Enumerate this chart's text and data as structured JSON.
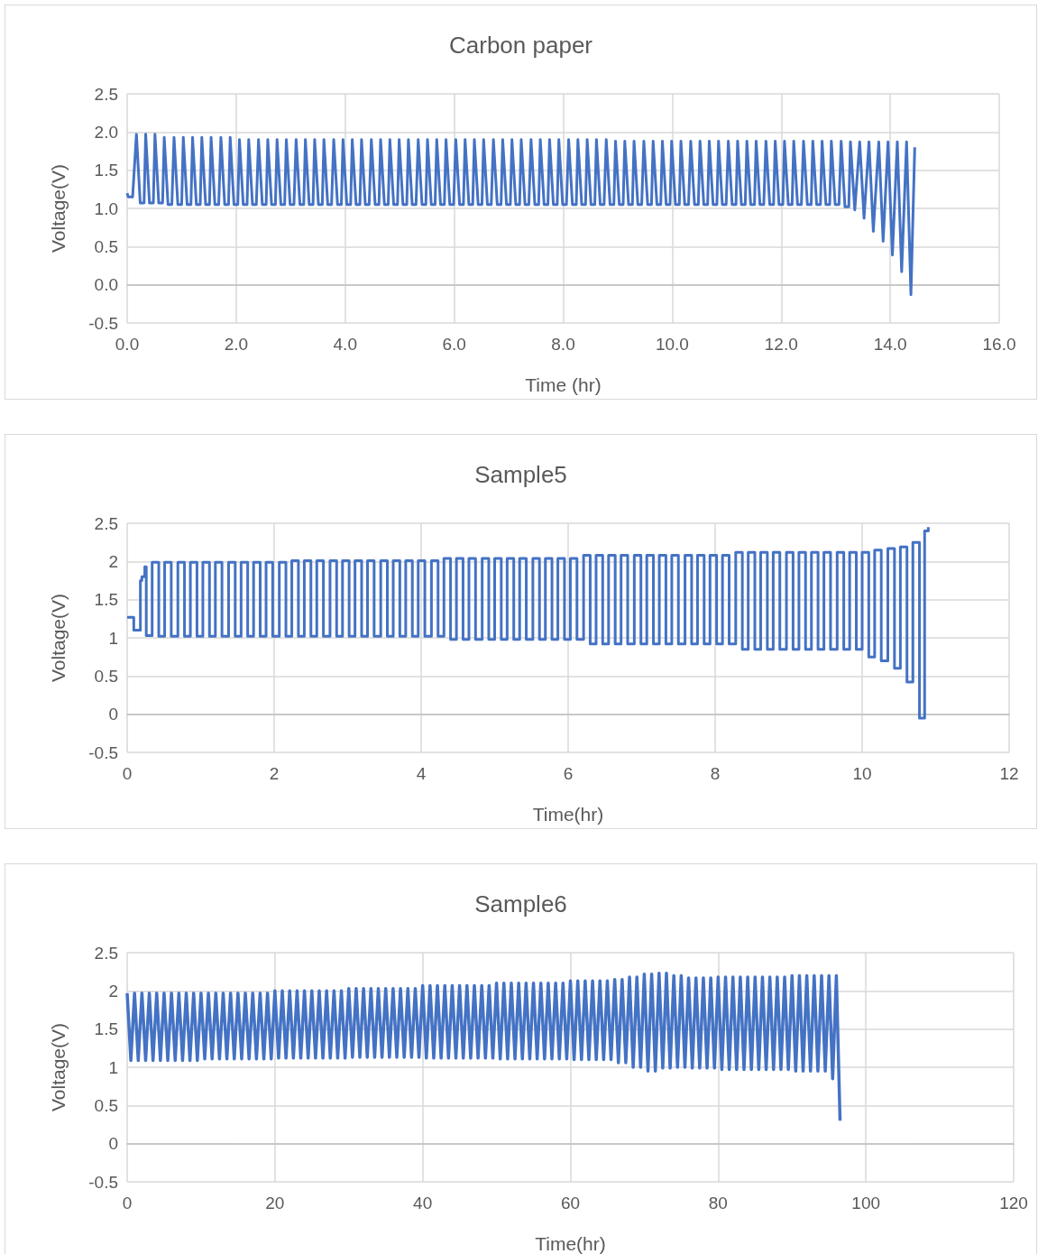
{
  "chart_data": [
    {
      "type": "line",
      "title": "Carbon paper",
      "xlabel": "Time (hr)",
      "ylabel": "Voltage(V)",
      "color": "#4472c4",
      "grid": true,
      "xlim": [
        0,
        16
      ],
      "xticks": [
        {
          "value": 0,
          "label": "0.0"
        },
        {
          "value": 2,
          "label": "2.0"
        },
        {
          "value": 4,
          "label": "4.0"
        },
        {
          "value": 6,
          "label": "6.0"
        },
        {
          "value": 8,
          "label": "8.0"
        },
        {
          "value": 10,
          "label": "10.0"
        },
        {
          "value": 12,
          "label": "12.0"
        },
        {
          "value": 14,
          "label": "14.0"
        },
        {
          "value": 16,
          "label": "16.0"
        }
      ],
      "ylim": [
        -0.5,
        2.5
      ],
      "yticks": [
        -0.5,
        {
          "value": 0,
          "label": "0.0"
        },
        0.5,
        {
          "value": 1,
          "label": "1.0"
        },
        1.5,
        {
          "value": 2,
          "label": "2.0"
        },
        2.5
      ],
      "x": [
        0,
        0.02,
        0.1,
        0.17,
        0.24,
        0.31,
        0.34,
        0.41,
        0.48,
        0.51,
        0.58,
        0.65,
        0.68,
        0.75,
        0.82,
        0.86,
        0.93,
        1.0,
        1.03,
        1.1,
        1.17,
        1.2,
        1.27,
        1.34,
        1.37,
        1.44,
        1.51,
        1.54,
        1.61,
        1.68,
        1.72,
        1.79,
        1.86,
        1.89,
        1.96,
        2.03,
        2.06,
        2.13,
        2.2,
        2.23,
        2.3,
        2.37,
        2.41,
        2.48,
        2.55,
        2.58,
        2.65,
        2.72,
        2.75,
        2.82,
        2.89,
        2.92,
        2.99,
        3.06,
        3.1,
        3.17,
        3.24,
        3.27,
        3.34,
        3.41,
        3.44,
        3.51,
        3.58,
        3.61,
        3.68,
        3.75,
        3.79,
        3.86,
        3.93,
        3.96,
        4.03,
        4.1,
        4.13,
        4.2,
        4.27,
        4.3,
        4.37,
        4.44,
        4.48,
        4.55,
        4.62,
        4.65,
        4.72,
        4.79,
        4.82,
        4.89,
        4.96,
        4.99,
        5.06,
        5.13,
        5.16,
        5.23,
        5.3,
        5.34,
        5.41,
        5.48,
        5.51,
        5.58,
        5.65,
        5.68,
        5.75,
        5.82,
        5.85,
        5.92,
        5.99,
        6.03,
        6.1,
        6.17,
        6.2,
        6.27,
        6.34,
        6.37,
        6.44,
        6.51,
        6.54,
        6.61,
        6.68,
        6.72,
        6.79,
        6.86,
        6.89,
        6.96,
        7.03,
        7.06,
        7.13,
        7.2,
        7.23,
        7.3,
        7.37,
        7.41,
        7.48,
        7.55,
        7.58,
        7.65,
        7.72,
        7.75,
        7.82,
        7.89,
        7.92,
        7.99,
        8.06,
        8.1,
        8.17,
        8.24,
        8.27,
        8.34,
        8.41,
        8.44,
        8.51,
        8.58,
        8.61,
        8.68,
        8.75,
        8.79,
        8.86,
        8.93,
        8.96,
        9.03,
        9.1,
        9.13,
        9.2,
        9.27,
        9.3,
        9.37,
        9.44,
        9.48,
        9.55,
        9.62,
        9.65,
        9.72,
        9.79,
        9.82,
        9.89,
        9.96,
        9.99,
        10.06,
        10.13,
        10.16,
        10.23,
        10.3,
        10.34,
        10.41,
        10.48,
        10.51,
        10.58,
        10.65,
        10.68,
        10.75,
        10.82,
        10.85,
        10.92,
        10.99,
        11.03,
        11.1,
        11.17,
        11.2,
        11.27,
        11.34,
        11.37,
        11.44,
        11.51,
        11.54,
        11.61,
        11.68,
        11.72,
        11.79,
        11.86,
        11.89,
        11.96,
        12.03,
        12.06,
        12.13,
        12.2,
        12.23,
        12.3,
        12.37,
        12.41,
        12.48,
        12.55,
        12.58,
        12.65,
        12.72,
        12.75,
        12.82,
        12.89,
        12.92,
        12.99,
        13.06,
        13.1,
        13.17,
        13.24,
        13.27,
        13.35,
        13.44,
        13.52,
        13.61,
        13.69,
        13.79,
        13.87,
        13.96,
        14.04,
        14.13,
        14.21,
        14.3,
        14.38,
        14.45
      ],
      "values": [
        1.2,
        1.15,
        1.15,
        1.97,
        1.07,
        1.07,
        1.97,
        1.07,
        1.07,
        1.97,
        1.07,
        1.07,
        1.93,
        1.05,
        1.05,
        1.93,
        1.05,
        1.05,
        1.93,
        1.05,
        1.05,
        1.93,
        1.05,
        1.05,
        1.93,
        1.05,
        1.05,
        1.93,
        1.05,
        1.05,
        1.93,
        1.05,
        1.05,
        1.93,
        1.05,
        1.05,
        1.9,
        1.05,
        1.05,
        1.9,
        1.05,
        1.05,
        1.9,
        1.05,
        1.05,
        1.9,
        1.05,
        1.05,
        1.9,
        1.05,
        1.05,
        1.9,
        1.05,
        1.05,
        1.9,
        1.05,
        1.05,
        1.9,
        1.05,
        1.05,
        1.9,
        1.05,
        1.05,
        1.9,
        1.05,
        1.05,
        1.9,
        1.05,
        1.05,
        1.9,
        1.05,
        1.05,
        1.9,
        1.05,
        1.05,
        1.9,
        1.05,
        1.05,
        1.9,
        1.05,
        1.05,
        1.9,
        1.05,
        1.05,
        1.9,
        1.05,
        1.05,
        1.9,
        1.05,
        1.05,
        1.9,
        1.05,
        1.05,
        1.9,
        1.05,
        1.05,
        1.9,
        1.05,
        1.05,
        1.9,
        1.05,
        1.05,
        1.9,
        1.05,
        1.05,
        1.9,
        1.05,
        1.05,
        1.9,
        1.05,
        1.05,
        1.9,
        1.05,
        1.05,
        1.9,
        1.05,
        1.05,
        1.9,
        1.05,
        1.05,
        1.9,
        1.05,
        1.05,
        1.9,
        1.05,
        1.05,
        1.9,
        1.05,
        1.05,
        1.9,
        1.05,
        1.05,
        1.9,
        1.05,
        1.05,
        1.9,
        1.05,
        1.05,
        1.9,
        1.05,
        1.05,
        1.9,
        1.05,
        1.05,
        1.9,
        1.05,
        1.05,
        1.9,
        1.05,
        1.05,
        1.9,
        1.05,
        1.05,
        1.9,
        1.05,
        1.05,
        1.88,
        1.05,
        1.05,
        1.88,
        1.05,
        1.05,
        1.88,
        1.05,
        1.05,
        1.88,
        1.05,
        1.05,
        1.88,
        1.05,
        1.05,
        1.88,
        1.05,
        1.05,
        1.88,
        1.05,
        1.05,
        1.88,
        1.05,
        1.05,
        1.88,
        1.05,
        1.05,
        1.88,
        1.05,
        1.05,
        1.88,
        1.05,
        1.05,
        1.88,
        1.05,
        1.05,
        1.88,
        1.05,
        1.05,
        1.88,
        1.05,
        1.05,
        1.88,
        1.05,
        1.05,
        1.88,
        1.05,
        1.05,
        1.88,
        1.05,
        1.05,
        1.88,
        1.05,
        1.05,
        1.88,
        1.05,
        1.05,
        1.88,
        1.05,
        1.05,
        1.88,
        1.05,
        1.05,
        1.88,
        1.05,
        1.05,
        1.88,
        1.05,
        1.05,
        1.88,
        1.05,
        1.05,
        1.88,
        1.02,
        1.02,
        1.87,
        0.98,
        1.87,
        0.87,
        1.87,
        0.7,
        1.87,
        0.57,
        1.87,
        0.39,
        1.87,
        0.17,
        1.87,
        -0.13,
        1.8
      ]
    },
    {
      "type": "step",
      "title": "Sample5",
      "xlabel": "Time(hr)",
      "ylabel": "Voltage(V)",
      "color": "#4472c4",
      "grid": true,
      "xlim": [
        0,
        12
      ],
      "xticks": [
        0,
        2,
        4,
        6,
        8,
        10,
        12
      ],
      "ylim": [
        -0.5,
        2.5
      ],
      "yticks": [
        -0.5,
        0,
        0.5,
        1,
        1.5,
        2,
        2.5
      ],
      "x": [
        0,
        0.09,
        0.18,
        0.2,
        0.24,
        0.26,
        0.34,
        0.43,
        0.51,
        0.6,
        0.69,
        0.78,
        0.86,
        0.95,
        1.03,
        1.12,
        1.2,
        1.29,
        1.38,
        1.47,
        1.55,
        1.64,
        1.72,
        1.81,
        1.89,
        1.98,
        2.07,
        2.16,
        2.24,
        2.33,
        2.41,
        2.5,
        2.58,
        2.67,
        2.76,
        2.85,
        2.93,
        3.02,
        3.1,
        3.19,
        3.27,
        3.36,
        3.45,
        3.54,
        3.62,
        3.71,
        3.79,
        3.88,
        3.96,
        4.05,
        4.14,
        4.23,
        4.31,
        4.4,
        4.48,
        4.57,
        4.65,
        4.74,
        4.83,
        4.92,
        5.0,
        5.09,
        5.17,
        5.26,
        5.34,
        5.43,
        5.52,
        5.61,
        5.69,
        5.78,
        5.86,
        5.95,
        6.03,
        6.12,
        6.21,
        6.3,
        6.38,
        6.47,
        6.55,
        6.64,
        6.72,
        6.81,
        6.9,
        6.99,
        7.07,
        7.16,
        7.24,
        7.33,
        7.41,
        7.5,
        7.59,
        7.68,
        7.76,
        7.85,
        7.93,
        8.02,
        8.1,
        8.19,
        8.28,
        8.37,
        8.45,
        8.54,
        8.62,
        8.71,
        8.79,
        8.88,
        8.97,
        9.06,
        9.14,
        9.23,
        9.31,
        9.4,
        9.48,
        9.57,
        9.66,
        9.75,
        9.83,
        9.92,
        10.0,
        10.09,
        10.17,
        10.26,
        10.35,
        10.44,
        10.52,
        10.61,
        10.69,
        10.78,
        10.85,
        10.9
      ],
      "values": [
        1.27,
        1.1,
        1.75,
        1.8,
        1.93,
        1.03,
        1.99,
        1.02,
        1.99,
        1.02,
        1.99,
        1.02,
        1.99,
        1.02,
        1.99,
        1.02,
        1.99,
        1.02,
        1.99,
        1.02,
        1.99,
        1.02,
        1.99,
        1.02,
        1.99,
        1.02,
        1.99,
        1.02,
        2.01,
        1.02,
        2.01,
        1.02,
        2.01,
        1.02,
        2.01,
        1.02,
        2.01,
        1.02,
        2.01,
        1.02,
        2.01,
        1.02,
        2.01,
        1.02,
        2.01,
        1.02,
        2.01,
        1.02,
        2.01,
        1.02,
        2.01,
        1.02,
        2.04,
        0.98,
        2.04,
        0.98,
        2.04,
        0.98,
        2.04,
        0.98,
        2.04,
        0.98,
        2.04,
        0.98,
        2.04,
        0.98,
        2.04,
        0.98,
        2.04,
        0.98,
        2.04,
        0.98,
        2.04,
        0.98,
        2.08,
        0.92,
        2.08,
        0.92,
        2.08,
        0.92,
        2.08,
        0.92,
        2.08,
        0.92,
        2.08,
        0.92,
        2.08,
        0.92,
        2.08,
        0.92,
        2.08,
        0.92,
        2.08,
        0.92,
        2.08,
        0.92,
        2.08,
        0.92,
        2.12,
        0.85,
        2.12,
        0.85,
        2.12,
        0.85,
        2.12,
        0.85,
        2.12,
        0.85,
        2.12,
        0.85,
        2.12,
        0.85,
        2.12,
        0.85,
        2.12,
        0.85,
        2.12,
        0.85,
        2.12,
        0.75,
        2.15,
        0.7,
        2.17,
        0.6,
        2.19,
        0.42,
        2.25,
        -0.05,
        2.4,
        2.45
      ]
    },
    {
      "type": "line",
      "title": "Sample6",
      "xlabel": "Time(hr)",
      "ylabel": "Voltage(V)",
      "color": "#4472c4",
      "grid": true,
      "xlim": [
        0,
        120
      ],
      "xticks": [
        0,
        20,
        40,
        60,
        80,
        100,
        120
      ],
      "ylim": [
        -0.5,
        2.5
      ],
      "yticks": [
        -0.5,
        0,
        0.5,
        1,
        1.5,
        2,
        2.5
      ],
      "x": [
        0,
        0.5,
        1,
        1.5,
        2,
        2.5,
        3,
        3.5,
        4,
        4.5,
        5,
        5.5,
        6,
        6.5,
        7,
        7.5,
        8,
        8.5,
        9,
        9.5,
        10,
        10.5,
        11,
        11.5,
        12,
        12.5,
        13,
        13.5,
        14,
        14.5,
        15,
        15.5,
        16,
        16.5,
        17,
        17.5,
        18,
        18.5,
        19,
        19.5,
        20,
        20.5,
        21,
        21.5,
        22,
        22.5,
        23,
        23.5,
        24,
        24.5,
        25,
        25.5,
        26,
        26.5,
        27,
        27.5,
        28,
        28.5,
        29,
        29.5,
        30,
        30.5,
        31,
        31.5,
        32,
        32.5,
        33,
        33.5,
        34,
        34.5,
        35,
        35.5,
        36,
        36.5,
        37,
        37.5,
        38,
        38.5,
        39,
        39.5,
        40,
        40.5,
        41,
        41.5,
        42,
        42.5,
        43,
        43.5,
        44,
        44.5,
        45,
        45.5,
        46,
        46.5,
        47,
        47.5,
        48,
        48.5,
        49,
        49.5,
        50,
        50.5,
        51,
        51.5,
        52,
        52.5,
        53,
        53.5,
        54,
        54.5,
        55,
        55.5,
        56,
        56.5,
        57,
        57.5,
        58,
        58.5,
        59,
        59.5,
        60,
        60.5,
        61,
        61.5,
        62,
        62.5,
        63,
        63.5,
        64,
        64.5,
        65,
        65.5,
        66,
        66.5,
        67,
        67.5,
        68,
        68.5,
        69,
        69.5,
        70,
        70.5,
        71,
        71.5,
        72,
        72.5,
        73,
        73.5,
        74,
        74.5,
        75,
        75.5,
        76,
        76.5,
        77,
        77.5,
        78,
        78.5,
        79,
        79.5,
        80,
        80.5,
        81,
        81.5,
        82,
        82.5,
        83,
        83.5,
        84,
        84.5,
        85,
        85.5,
        86,
        86.5,
        87,
        87.5,
        88,
        88.5,
        89,
        89.5,
        90,
        90.5,
        91,
        91.5,
        92,
        92.5,
        93,
        93.5,
        94,
        94.5,
        95,
        95.5,
        96,
        96.5
      ],
      "values": [
        1.97,
        1.09,
        1.97,
        1.09,
        1.97,
        1.09,
        1.97,
        1.09,
        1.97,
        1.09,
        1.97,
        1.09,
        1.97,
        1.09,
        1.97,
        1.09,
        1.97,
        1.09,
        1.97,
        1.09,
        1.97,
        1.11,
        1.97,
        1.11,
        1.97,
        1.11,
        1.97,
        1.11,
        1.97,
        1.11,
        1.97,
        1.11,
        1.97,
        1.11,
        1.97,
        1.11,
        1.97,
        1.11,
        1.97,
        1.11,
        2.0,
        1.12,
        2.0,
        1.12,
        2.0,
        1.12,
        2.0,
        1.12,
        2.0,
        1.12,
        2.0,
        1.12,
        2.0,
        1.12,
        2.0,
        1.12,
        2.0,
        1.12,
        2.0,
        1.12,
        2.03,
        1.13,
        2.03,
        1.13,
        2.03,
        1.13,
        2.03,
        1.13,
        2.03,
        1.13,
        2.03,
        1.13,
        2.03,
        1.13,
        2.03,
        1.13,
        2.03,
        1.13,
        2.03,
        1.13,
        2.07,
        1.12,
        2.07,
        1.12,
        2.07,
        1.12,
        2.07,
        1.12,
        2.07,
        1.12,
        2.07,
        1.12,
        2.07,
        1.12,
        2.07,
        1.12,
        2.07,
        1.12,
        2.07,
        1.12,
        2.1,
        1.11,
        2.1,
        1.11,
        2.1,
        1.11,
        2.1,
        1.11,
        2.1,
        1.11,
        2.1,
        1.11,
        2.1,
        1.11,
        2.1,
        1.11,
        2.1,
        1.11,
        2.1,
        1.11,
        2.13,
        1.1,
        2.13,
        1.1,
        2.13,
        1.1,
        2.13,
        1.1,
        2.13,
        1.1,
        2.13,
        1.1,
        2.15,
        1.06,
        2.15,
        1.06,
        2.18,
        1.0,
        2.18,
        1.0,
        2.22,
        0.95,
        2.22,
        0.95,
        2.23,
        0.99,
        2.23,
        0.99,
        2.2,
        1.0,
        2.2,
        1.0,
        2.17,
        0.99,
        2.17,
        0.99,
        2.17,
        0.99,
        2.17,
        0.99,
        2.18,
        0.97,
        2.18,
        0.97,
        2.18,
        0.97,
        2.18,
        0.97,
        2.18,
        0.97,
        2.18,
        0.97,
        2.18,
        0.97,
        2.18,
        0.97,
        2.18,
        0.97,
        2.18,
        0.97,
        2.2,
        0.95,
        2.2,
        0.95,
        2.2,
        0.95,
        2.2,
        0.95,
        2.2,
        0.95,
        2.2,
        0.85,
        2.2,
        0.3
      ]
    }
  ]
}
